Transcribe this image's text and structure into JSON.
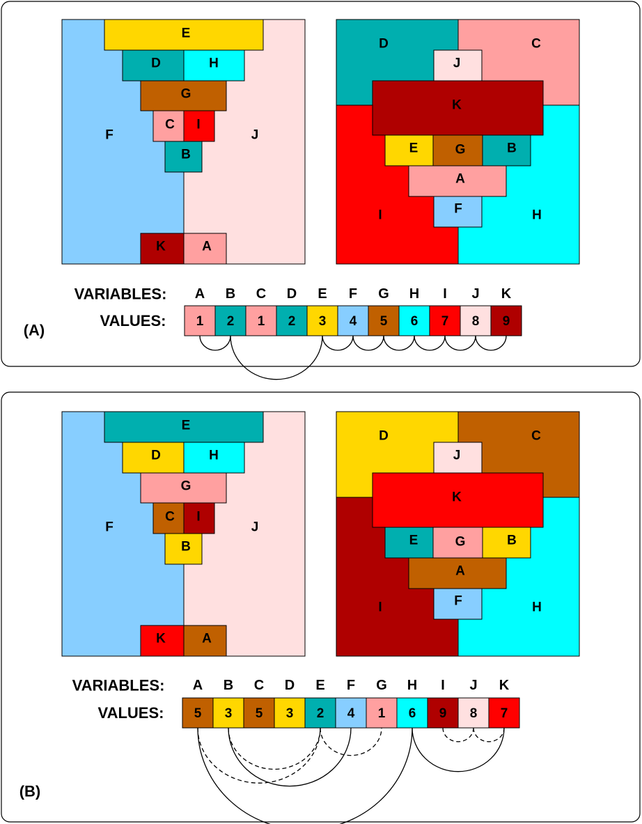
{
  "colors": {
    "1": "#FFA0A0",
    "2": "#00AFAF",
    "3": "#FFD700",
    "4": "#87CEFF",
    "5": "#C06000",
    "6": "#00FFFF",
    "7": "#FF0000",
    "8": "#FFE0E0",
    "9": "#AF0000"
  },
  "variables_label": "VARIABLES:",
  "values_label": "VALUES:",
  "variables": [
    "A",
    "B",
    "C",
    "D",
    "E",
    "F",
    "G",
    "H",
    "I",
    "J",
    "K"
  ],
  "panels": [
    {
      "label": "(A)",
      "values": {
        "A": 1,
        "B": 2,
        "C": 1,
        "D": 2,
        "E": 3,
        "F": 4,
        "G": 5,
        "H": 6,
        "I": 7,
        "J": 8,
        "K": 9
      },
      "arcs_solid": [
        [
          "A",
          "B"
        ],
        [
          "B",
          "E"
        ],
        [
          "E",
          "F"
        ],
        [
          "F",
          "G"
        ],
        [
          "G",
          "H"
        ],
        [
          "H",
          "I"
        ],
        [
          "I",
          "J"
        ],
        [
          "J",
          "K"
        ]
      ],
      "arcs_dashed": []
    },
    {
      "label": "(B)",
      "values": {
        "A": 5,
        "B": 3,
        "C": 5,
        "D": 3,
        "E": 2,
        "F": 4,
        "G": 1,
        "H": 6,
        "I": 9,
        "J": 8,
        "K": 7
      },
      "arcs_solid": [
        [
          "A",
          "H"
        ],
        [
          "B",
          "F"
        ],
        [
          "H",
          "K"
        ]
      ],
      "arcs_dashed": [
        [
          "A",
          "E"
        ],
        [
          "B",
          "E"
        ],
        [
          "E",
          "G"
        ],
        [
          "I",
          "J"
        ],
        [
          "J",
          "K"
        ]
      ]
    }
  ]
}
